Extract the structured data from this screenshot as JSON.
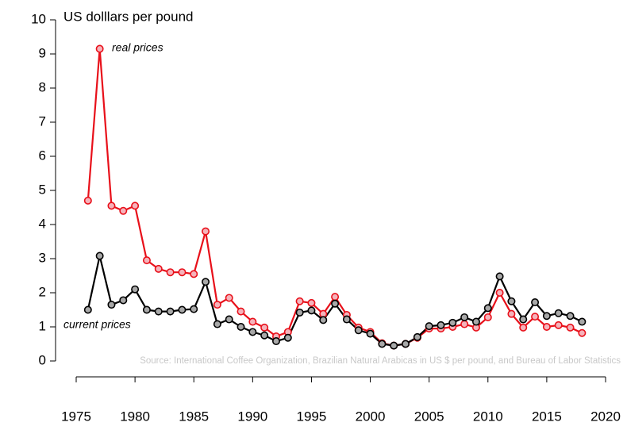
{
  "chart_data": {
    "type": "line",
    "title": "US dolllars per pound",
    "annotations": [
      "real prices",
      "current prices"
    ],
    "source": "Source: International Coffee Organization, Brazilian Natural Arabicas in US $ per pound, and Bureau of Labor Statistics",
    "x": [
      1976,
      1977,
      1978,
      1979,
      1980,
      1981,
      1982,
      1983,
      1984,
      1985,
      1986,
      1987,
      1988,
      1989,
      1990,
      1991,
      1992,
      1993,
      1994,
      1995,
      1996,
      1997,
      1998,
      1999,
      2000,
      2001,
      2002,
      2003,
      2004,
      2005,
      2006,
      2007,
      2008,
      2009,
      2010,
      2011,
      2012,
      2013,
      2014,
      2015,
      2016,
      2017,
      2018
    ],
    "series": [
      {
        "name": "real prices",
        "color": "#e8101a",
        "marker_fill": "#f5b3bb",
        "values": [
          4.7,
          9.15,
          4.55,
          4.4,
          4.55,
          2.95,
          2.7,
          2.6,
          2.6,
          2.55,
          3.8,
          1.65,
          1.85,
          1.45,
          1.15,
          0.98,
          0.72,
          0.85,
          1.75,
          1.7,
          1.38,
          1.88,
          1.35,
          0.98,
          0.85,
          0.52,
          0.45,
          0.5,
          0.68,
          0.95,
          0.95,
          1.0,
          1.08,
          0.98,
          1.28,
          2.0,
          1.38,
          0.98,
          1.3,
          1.0,
          1.05,
          0.98,
          0.82
        ]
      },
      {
        "name": "current prices",
        "color": "#000000",
        "marker_fill": "#a8a8a8",
        "values": [
          1.5,
          3.08,
          1.65,
          1.78,
          2.1,
          1.5,
          1.45,
          1.45,
          1.5,
          1.52,
          2.32,
          1.08,
          1.22,
          1.0,
          0.85,
          0.75,
          0.58,
          0.68,
          1.42,
          1.48,
          1.2,
          1.68,
          1.22,
          0.9,
          0.8,
          0.5,
          0.45,
          0.5,
          0.7,
          1.02,
          1.05,
          1.12,
          1.28,
          1.15,
          1.55,
          2.48,
          1.75,
          1.22,
          1.72,
          1.32,
          1.4,
          1.32,
          1.15
        ]
      }
    ],
    "xlim": [
      1975,
      2020
    ],
    "xticks": [
      1975,
      1980,
      1985,
      1990,
      1995,
      2000,
      2005,
      2010,
      2015,
      2020
    ],
    "ylim": [
      0,
      10
    ],
    "yticks": [
      0,
      1,
      2,
      3,
      4,
      5,
      6,
      7,
      8,
      9,
      10
    ],
    "grid": false
  }
}
